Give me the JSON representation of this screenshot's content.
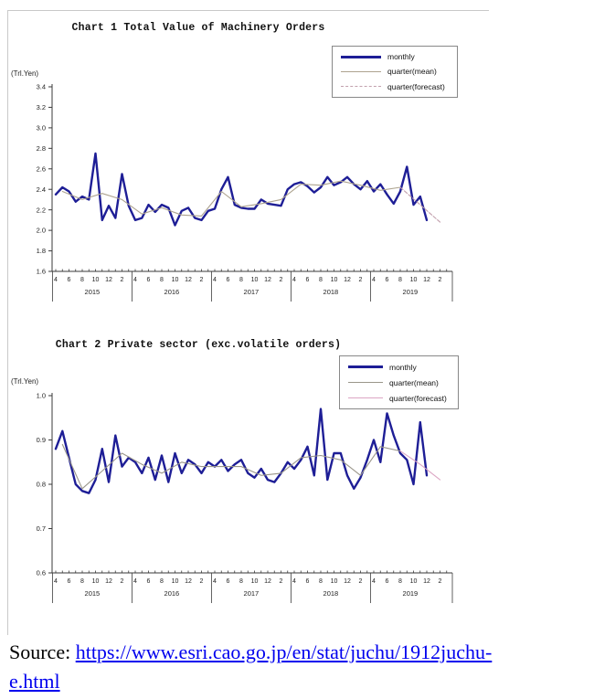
{
  "source": {
    "prefix": "Source: ",
    "link_line1": "https://www.esri.cao.go.jp/en/stat/juchu/1912juchu-",
    "link_line2": "e.html",
    "link_color": "#0000ee"
  },
  "colors": {
    "monthly_line": "#1e1e96",
    "axis": "#3a3a3a",
    "frame_border": "#c9c9c9"
  },
  "chart_data": [
    {
      "type": "line",
      "title": "Chart 1 Total Value of Machinery Orders",
      "unit_label": "(Trl.Yen)",
      "ylabel": "Trl.Yen",
      "ylim": [
        1.6,
        3.4
      ],
      "y_ticks": [
        "3.4",
        "3.2",
        "3.0",
        "2.8",
        "2.6",
        "2.4",
        "2.2",
        "2.0",
        "1.8",
        "1.6"
      ],
      "x_start_month": "2015-04",
      "months_span": 60,
      "x_month_tick_labels": [
        "4",
        "6",
        "8",
        "10",
        "12",
        "2"
      ],
      "x_years": [
        "2015",
        "2016",
        "2017",
        "2018",
        "2019"
      ],
      "grid": false,
      "legend_position": "top-right",
      "series": [
        {
          "name": "monthly",
          "color": "#1e1e96",
          "width": 2.4,
          "values": [
            2.35,
            2.42,
            2.38,
            2.28,
            2.33,
            2.3,
            2.75,
            2.1,
            2.24,
            2.12,
            2.55,
            2.24,
            2.1,
            2.12,
            2.25,
            2.18,
            2.25,
            2.22,
            2.05,
            2.19,
            2.22,
            2.12,
            2.1,
            2.19,
            2.21,
            2.4,
            2.52,
            2.25,
            2.22,
            2.21,
            2.21,
            2.3,
            2.26,
            2.25,
            2.24,
            2.4,
            2.45,
            2.47,
            2.43,
            2.37,
            2.42,
            2.52,
            2.44,
            2.47,
            2.52,
            2.45,
            2.4,
            2.48,
            2.38,
            2.45,
            2.35,
            2.26,
            2.38,
            2.62,
            2.25,
            2.33,
            2.1
          ]
        },
        {
          "name": "quarter(mean)",
          "color": "#ada38f",
          "width": 1.1,
          "values": [
            2.38,
            2.3,
            2.36,
            2.3,
            2.16,
            2.22,
            2.15,
            2.14,
            2.38,
            2.23,
            2.26,
            2.3,
            2.45,
            2.44,
            2.48,
            2.44,
            2.39,
            2.42
          ]
        },
        {
          "name": "quarter(forecast)",
          "color": "#c2a0ad",
          "width": 1.1,
          "dash": "4,2",
          "quarters": [
            17,
            18,
            19
          ],
          "values": [
            2.42,
            2.25,
            2.08
          ]
        }
      ]
    },
    {
      "type": "line",
      "title": "Chart 2 Private sector (exc.volatile orders)",
      "unit_label": "(Trl.Yen)",
      "ylabel": "Trl.Yen",
      "ylim": [
        0.6,
        1.0
      ],
      "y_ticks": [
        "1.0",
        "0.9",
        "0.8",
        "0.7",
        "0.6"
      ],
      "x_start_month": "2015-04",
      "months_span": 60,
      "x_month_tick_labels": [
        "4",
        "6",
        "8",
        "10",
        "12",
        "2"
      ],
      "x_years": [
        "2015",
        "2016",
        "2017",
        "2018",
        "2019"
      ],
      "grid": false,
      "legend_position": "top-right",
      "series": [
        {
          "name": "monthly",
          "color": "#1e1e96",
          "width": 2.4,
          "values": [
            0.88,
            0.92,
            0.86,
            0.8,
            0.785,
            0.78,
            0.81,
            0.88,
            0.805,
            0.91,
            0.84,
            0.86,
            0.85,
            0.825,
            0.86,
            0.81,
            0.865,
            0.805,
            0.87,
            0.825,
            0.855,
            0.845,
            0.825,
            0.85,
            0.84,
            0.855,
            0.83,
            0.845,
            0.855,
            0.825,
            0.815,
            0.835,
            0.81,
            0.805,
            0.825,
            0.85,
            0.835,
            0.855,
            0.885,
            0.82,
            0.97,
            0.81,
            0.87,
            0.87,
            0.82,
            0.79,
            0.815,
            0.855,
            0.9,
            0.85,
            0.96,
            0.91,
            0.87,
            0.855,
            0.8,
            0.94,
            0.82
          ]
        },
        {
          "name": "quarter(mean)",
          "color": "#9a968a",
          "width": 1.1,
          "values": [
            0.89,
            0.79,
            0.83,
            0.87,
            0.845,
            0.825,
            0.85,
            0.84,
            0.84,
            0.84,
            0.82,
            0.825,
            0.86,
            0.865,
            0.855,
            0.82,
            0.885,
            0.875
          ]
        },
        {
          "name": "quarter(forecast)",
          "color": "#dca6c4",
          "width": 1.1,
          "quarters": [
            17,
            18,
            19
          ],
          "values": [
            0.875,
            0.845,
            0.81
          ]
        }
      ]
    }
  ]
}
